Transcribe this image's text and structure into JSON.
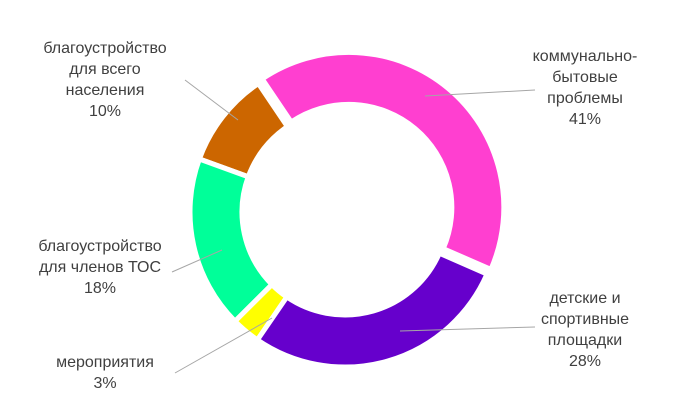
{
  "chart_data": {
    "type": "donut",
    "categories": [
      "коммунально-бытовые проблемы",
      "детские и спортивные площадки",
      "мероприятия",
      "благоустройство для членов ТОС",
      "благоустройство для всего населения"
    ],
    "values": [
      41,
      28,
      3,
      18,
      10
    ],
    "value_labels": [
      "41%",
      "28%",
      "3%",
      "18%",
      "10%"
    ],
    "colors": [
      "#ff3fd0",
      "#6600cc",
      "#ffff00",
      "#00ff99",
      "#cc6600"
    ]
  }
}
